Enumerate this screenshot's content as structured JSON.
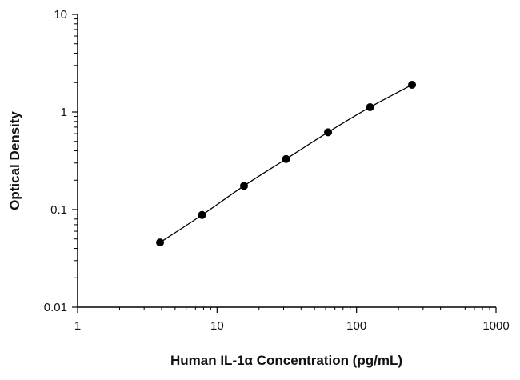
{
  "chart_data": {
    "type": "scatter",
    "title": "",
    "xlabel": "Human IL-1α Concentration (pg/mL)",
    "ylabel": "Optical Density",
    "x_scale": "log",
    "y_scale": "log",
    "xlim": [
      1,
      1000
    ],
    "ylim": [
      0.01,
      10
    ],
    "x_ticks": [
      "1",
      "10",
      "100",
      "1000"
    ],
    "y_ticks": [
      "10",
      "1",
      "0.1",
      "0.01"
    ],
    "grid": false,
    "legend": "none",
    "series": [
      {
        "x": [
          3.9,
          7.8,
          15.6,
          31.25,
          62.5,
          125,
          250
        ],
        "y": [
          0.046,
          0.088,
          0.175,
          0.33,
          0.62,
          1.12,
          1.9
        ]
      }
    ],
    "marker_color": "#000000",
    "line_color": "#000000"
  }
}
